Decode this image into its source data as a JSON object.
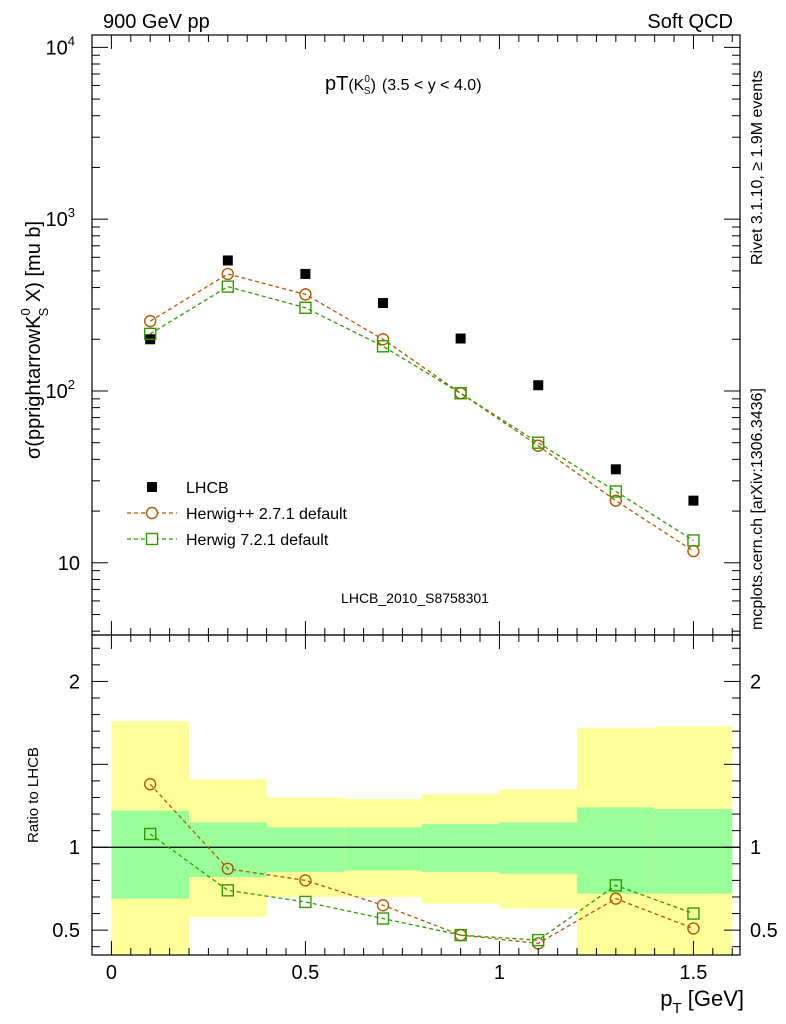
{
  "header": {
    "left": "900 GeV pp",
    "right": "Soft QCD"
  },
  "side_labels": {
    "rivet": "Rivet 3.1.10, ≥ 1.9M events",
    "mcplots": "mcplots.cern.ch [arXiv:1306.3436]"
  },
  "chart_data": {
    "type": "scatter",
    "title_main": "pT",
    "title_particle": "(K",
    "title_particle_sup": "0",
    "title_particle_sub": "S",
    "title_particle_end": ")",
    "title_range": "(3.5 < y < 4.0)",
    "watermark": "LHCB_2010_S8758301",
    "ylabel_main": "σ(pprightarrowK",
    "ylabel_sup": "0",
    "ylabel_sub": "S",
    "ylabel_end": " X) [mu b]",
    "xlabel": "p",
    "xlabel_sub": "T",
    "xlabel_unit": " [GeV]",
    "ratio_ylabel": "Ratio to LHCB",
    "xlim": [
      -0.05,
      1.62
    ],
    "ylim": [
      3.8,
      11800
    ],
    "ylog": true,
    "ratio_ylim": [
      0.35,
      2.28
    ],
    "x_ticks": [
      {
        "value": 0,
        "label": "0"
      },
      {
        "value": 0.5,
        "label": "0.5"
      },
      {
        "value": 1,
        "label": "1"
      },
      {
        "value": 1.5,
        "label": "1.5"
      }
    ],
    "y_ticks": [
      {
        "value": 10,
        "base": "10",
        "exp": ""
      },
      {
        "value": 100,
        "base": "10",
        "exp": "2"
      },
      {
        "value": 1000,
        "base": "10",
        "exp": "3"
      },
      {
        "value": 10000,
        "base": "10",
        "exp": "4"
      }
    ],
    "ratio_ticks": [
      {
        "value": 0.5,
        "label": "0.5"
      },
      {
        "value": 1,
        "label": "1"
      },
      {
        "value": 2,
        "label": "2"
      }
    ],
    "legend_position": "lower-left",
    "series": [
      {
        "name": "LHCB",
        "style": "data",
        "color": "#000000",
        "x": [
          0.1,
          0.3,
          0.5,
          0.7,
          0.9,
          1.1,
          1.3,
          1.5
        ],
        "y": [
          200,
          575,
          480,
          325,
          202,
          108,
          35,
          23
        ]
      },
      {
        "name": "Herwig++ 2.7.1 default",
        "style": "circle",
        "color": "#b35900",
        "x": [
          0.1,
          0.3,
          0.5,
          0.7,
          0.9,
          1.1,
          1.3,
          1.5
        ],
        "y": [
          255,
          480,
          365,
          200,
          97,
          48,
          23,
          11.7
        ],
        "ratio": [
          1.38,
          0.87,
          0.8,
          0.65,
          0.47,
          0.42,
          0.69,
          0.51
        ]
      },
      {
        "name": "Herwig 7.2.1 default",
        "style": "square",
        "color": "#339900",
        "x": [
          0.1,
          0.3,
          0.5,
          0.7,
          0.9,
          1.1,
          1.3,
          1.5
        ],
        "y": [
          215,
          405,
          305,
          182,
          97,
          50,
          26,
          13.5
        ],
        "ratio": [
          1.08,
          0.74,
          0.67,
          0.57,
          0.47,
          0.44,
          0.77,
          0.6
        ]
      }
    ],
    "ratio_bands": [
      {
        "x0": 0.0,
        "x1": 0.2,
        "inner": [
          0.69,
          1.22
        ],
        "outer": [
          0.35,
          1.76
        ]
      },
      {
        "x0": 0.2,
        "x1": 0.4,
        "inner": [
          0.82,
          1.15
        ],
        "outer": [
          0.58,
          1.41
        ]
      },
      {
        "x0": 0.4,
        "x1": 0.6,
        "inner": [
          0.85,
          1.12
        ],
        "outer": [
          0.7,
          1.3
        ]
      },
      {
        "x0": 0.6,
        "x1": 0.8,
        "inner": [
          0.86,
          1.12
        ],
        "outer": [
          0.7,
          1.29
        ]
      },
      {
        "x0": 0.8,
        "x1": 1.0,
        "inner": [
          0.85,
          1.14
        ],
        "outer": [
          0.66,
          1.32
        ]
      },
      {
        "x0": 1.0,
        "x1": 1.2,
        "inner": [
          0.84,
          1.15
        ],
        "outer": [
          0.63,
          1.35
        ]
      },
      {
        "x0": 1.2,
        "x1": 1.4,
        "inner": [
          0.72,
          1.24
        ],
        "outer": [
          0.35,
          1.72
        ]
      },
      {
        "x0": 1.4,
        "x1": 1.6,
        "inner": [
          0.72,
          1.23
        ],
        "outer": [
          0.35,
          1.73
        ]
      }
    ],
    "colors": {
      "band_inner": "#99ff99",
      "band_outer": "#ffff99",
      "watermark": "#999999",
      "side_text": "#888888"
    }
  }
}
